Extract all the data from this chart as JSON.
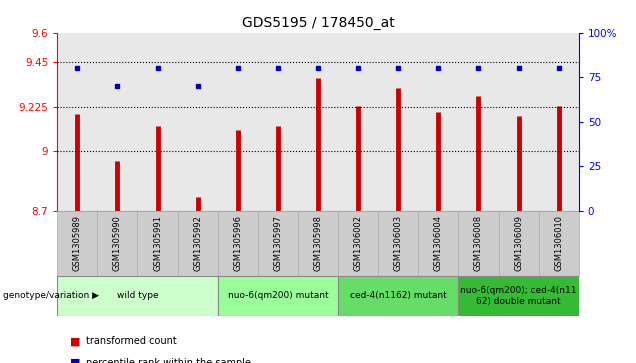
{
  "title": "GDS5195 / 178450_at",
  "samples": [
    "GSM1305989",
    "GSM1305990",
    "GSM1305991",
    "GSM1305992",
    "GSM1305996",
    "GSM1305997",
    "GSM1305998",
    "GSM1306002",
    "GSM1306003",
    "GSM1306004",
    "GSM1306008",
    "GSM1306009",
    "GSM1306010"
  ],
  "transformed_count": [
    9.19,
    8.95,
    9.13,
    8.77,
    9.11,
    9.13,
    9.37,
    9.23,
    9.32,
    9.2,
    9.28,
    9.18,
    9.23
  ],
  "percentile": [
    80,
    70,
    80,
    70,
    80,
    80,
    80,
    80,
    80,
    80,
    80,
    80,
    80
  ],
  "bar_color": "#cc0000",
  "dot_color": "#0000cc",
  "ylim_left": [
    8.7,
    9.6
  ],
  "ylim_right": [
    0,
    100
  ],
  "yticks_left": [
    8.7,
    9.0,
    9.225,
    9.45,
    9.6
  ],
  "ytick_labels_left": [
    "8.7",
    "9",
    "9.225",
    "9.45",
    "9.6"
  ],
  "yticks_right": [
    0,
    25,
    50,
    75,
    100
  ],
  "ytick_labels_right": [
    "0",
    "25",
    "50",
    "75",
    "100%"
  ],
  "hlines": [
    9.0,
    9.225,
    9.45
  ],
  "groups": [
    {
      "label": "wild type",
      "indices": [
        0,
        1,
        2,
        3
      ],
      "color": "#ccffcc"
    },
    {
      "label": "nuo-6(qm200) mutant",
      "indices": [
        4,
        5,
        6
      ],
      "color": "#99ff99"
    },
    {
      "label": "ced-4(n1162) mutant",
      "indices": [
        7,
        8,
        9
      ],
      "color": "#66dd66"
    },
    {
      "label": "nuo-6(qm200); ced-4(n11\n62) double mutant",
      "indices": [
        10,
        11,
        12
      ],
      "color": "#33bb33"
    }
  ],
  "legend_items": [
    {
      "label": "transformed count",
      "color": "#cc0000"
    },
    {
      "label": "percentile rank within the sample",
      "color": "#0000cc"
    }
  ],
  "genotype_label": "genotype/variation",
  "background_plot": "#e8e8e8",
  "xtick_bg": "#cccccc"
}
